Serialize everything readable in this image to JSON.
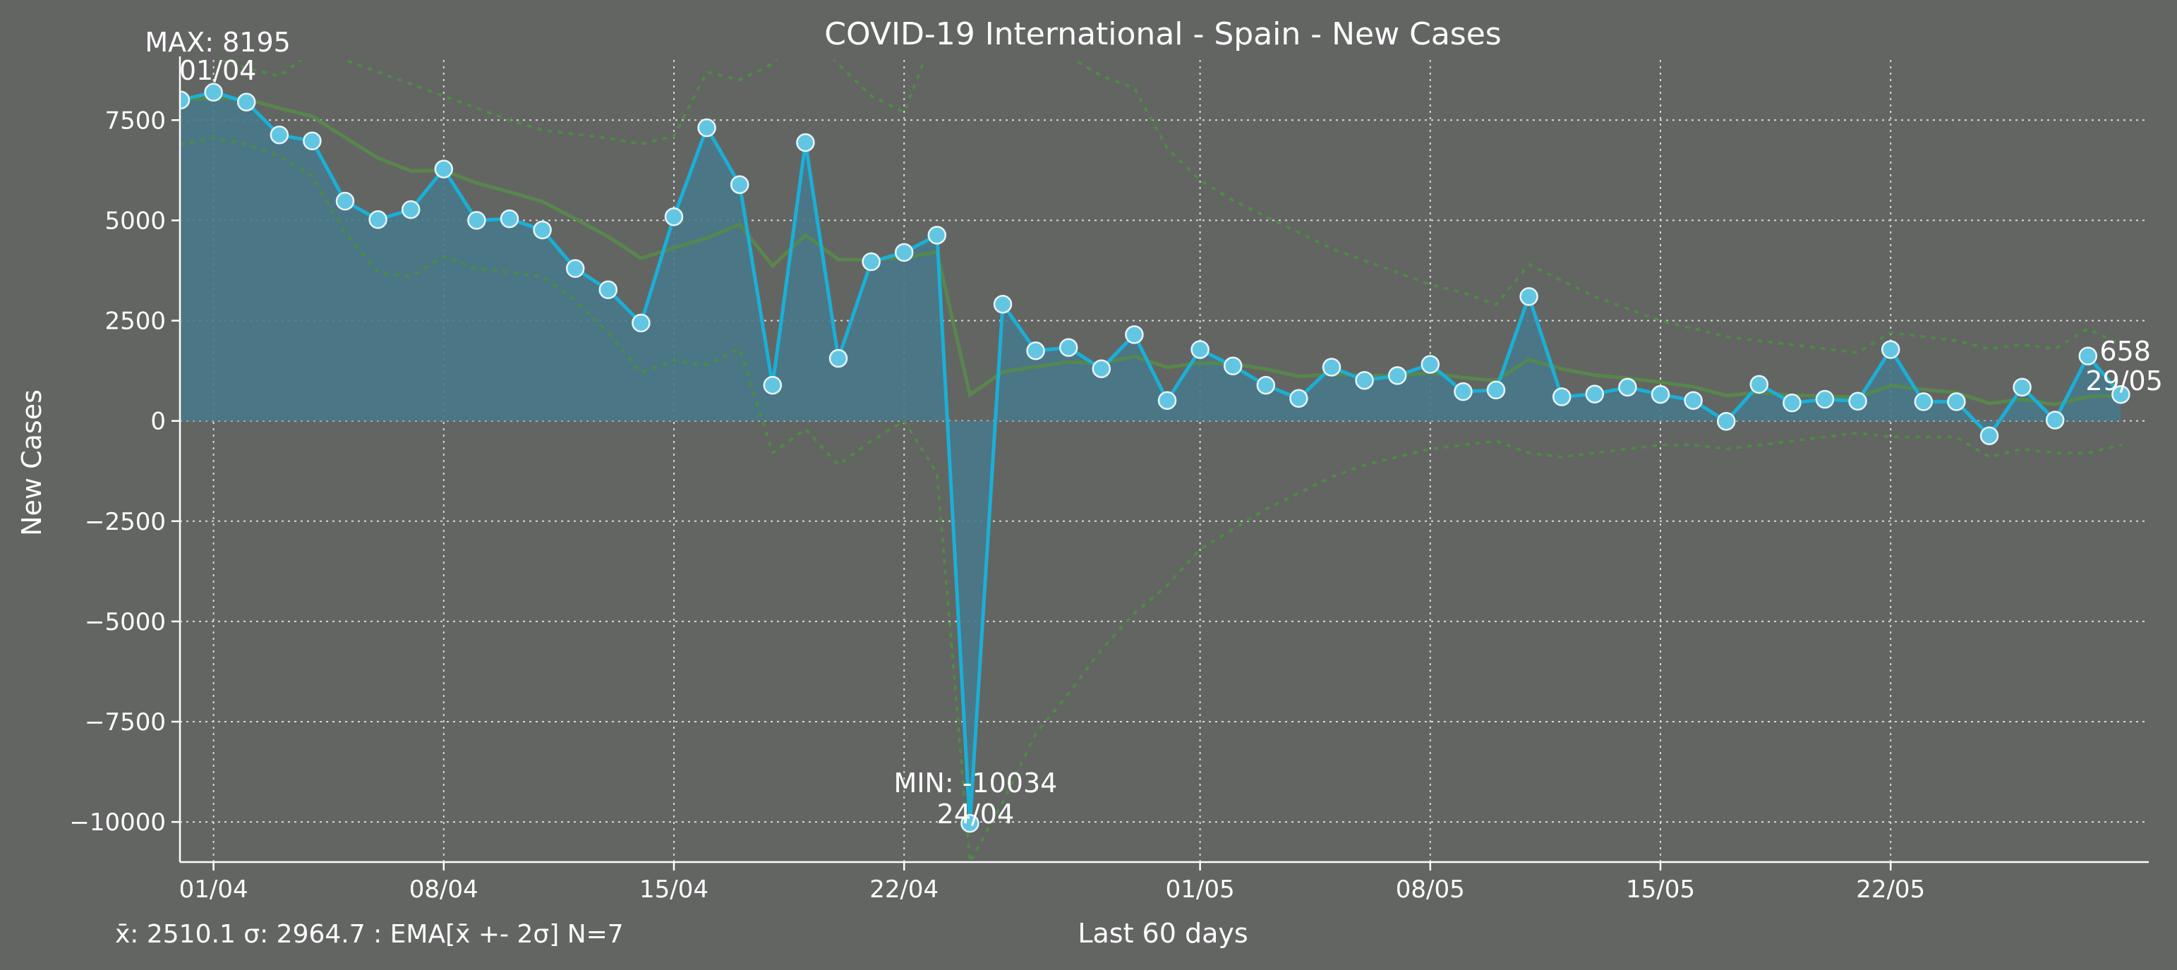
{
  "chart_data": {
    "type": "line",
    "title": "COVID-19 International - Spain - New Cases",
    "xlabel": "Last 60 days",
    "ylabel": "New Cases",
    "ylim": [
      -11000,
      9000
    ],
    "yticks": [
      -10000,
      -7500,
      -5000,
      -2500,
      0,
      2500,
      5000,
      7500
    ],
    "ytick_labels": [
      "−10000",
      "−7500",
      "−5000",
      "−2500",
      "0",
      "2500",
      "5000",
      "7500"
    ],
    "x_dates": [
      "31/03",
      "01/04",
      "02/04",
      "03/04",
      "04/04",
      "05/04",
      "06/04",
      "07/04",
      "08/04",
      "09/04",
      "10/04",
      "11/04",
      "12/04",
      "13/04",
      "14/04",
      "15/04",
      "16/04",
      "17/04",
      "18/04",
      "19/04",
      "20/04",
      "21/04",
      "22/04",
      "23/04",
      "24/04",
      "25/04",
      "26/04",
      "27/04",
      "28/04",
      "29/04",
      "30/04",
      "01/05",
      "02/05",
      "03/05",
      "04/05",
      "05/05",
      "06/05",
      "07/05",
      "08/05",
      "09/05",
      "10/05",
      "11/05",
      "12/05",
      "13/05",
      "14/05",
      "15/05",
      "16/05",
      "17/05",
      "18/05",
      "19/05",
      "20/05",
      "21/05",
      "22/05",
      "23/05",
      "24/05",
      "25/05",
      "26/05",
      "27/05",
      "28/05",
      "29/05"
    ],
    "xtick_labels": [
      "01/04",
      "08/04",
      "15/04",
      "22/04",
      "01/05",
      "08/05",
      "15/05",
      "22/05"
    ],
    "grid": true,
    "series": [
      {
        "values": [
          8000,
          8195,
          7950,
          7130,
          6980,
          5480,
          5020,
          5270,
          6280,
          5000,
          5040,
          4760,
          3800,
          3270,
          2440,
          5090,
          7310,
          5890,
          890,
          6940,
          1560,
          3970,
          4200,
          4630,
          -10034,
          2910,
          1750,
          1830,
          1300,
          2150,
          510,
          1780,
          1370,
          890,
          560,
          1340,
          1010,
          1130,
          1410,
          730,
          770,
          3100,
          600,
          670,
          840,
          660,
          510,
          -10,
          910,
          450,
          540,
          490,
          1780,
          480,
          480,
          -370,
          840,
          20,
          1620,
          658
        ],
        "style": "line-markers"
      },
      {
        "values": [
          8000,
          8049,
          8024,
          7800,
          7595,
          7066,
          6555,
          6233,
          6245,
          5932,
          5709,
          5472,
          5040,
          4594,
          4055,
          4313,
          4562,
          4905,
          3867,
          4634,
          4028,
          4015,
          4062,
          4213,
          651,
          1219,
          1352,
          1472,
          1429,
          1609,
          1334,
          1445,
          1426,
          1292,
          1109,
          1167,
          1128,
          1129,
          1200,
          1083,
          1005,
          1529,
          1297,
          1140,
          1065,
          964,
          850,
          635,
          705,
          641,
          616,
          585,
          883,
          782,
          706,
          437,
          538,
          408,
          611,
          623
        ],
        "style": "ema"
      },
      {
        "values": [
          8000,
          8049,
          8024,
          7800,
          7595,
          7066,
          6555,
          6233,
          6245,
          5932,
          5709,
          5472,
          5040,
          4594,
          4055,
          4313,
          4562,
          4905,
          3867,
          4634,
          4028,
          4015,
          4062,
          4213,
          651,
          1219,
          1352,
          1472,
          1429,
          1609,
          1334,
          1445,
          1426,
          1292,
          1109,
          1167,
          1128,
          1129,
          1200,
          1083,
          1005,
          1529,
          1297,
          1140,
          1065,
          964,
          850,
          635,
          705,
          641,
          616,
          585,
          883,
          782,
          706,
          437,
          538,
          408,
          611,
          623
        ],
        "band": [
          9100,
          9050,
          8800,
          8600,
          9200,
          9000,
          8700,
          8400,
          8100,
          7800,
          7500,
          7250,
          7150,
          7050,
          6900,
          7100,
          8700,
          8500,
          8900,
          9800,
          8900,
          8100,
          7700,
          9800,
          9800,
          9500,
          9300,
          9100,
          8600,
          8300,
          6800,
          6000,
          5500,
          5100,
          4700,
          4300,
          4000,
          3700,
          3400,
          3200,
          2900,
          3900,
          3500,
          3100,
          2800,
          2500,
          2300,
          2100,
          2000,
          1900,
          1800,
          1700,
          2200,
          2100,
          2000,
          1800,
          1900,
          1800,
          2300,
          1900
        ],
        "lower": [
          6900,
          7050,
          6900,
          6600,
          6100,
          4700,
          3700,
          3600,
          4100,
          3800,
          3700,
          3600,
          3000,
          2200,
          1200,
          1500,
          1400,
          1800,
          -800,
          -200,
          -1100,
          -500,
          0,
          -1300,
          -11000,
          -9500,
          -7800,
          -6800,
          -5700,
          -4800,
          -4100,
          -3200,
          -2700,
          -2200,
          -1800,
          -1400,
          -1100,
          -900,
          -700,
          -600,
          -500,
          -800,
          -900,
          -800,
          -700,
          -600,
          -600,
          -700,
          -600,
          -500,
          -400,
          -300,
          -400,
          -400,
          -400,
          -900,
          -700,
          -800,
          -800,
          -600
        ],
        "style": "bands"
      }
    ],
    "annotations": {
      "max": {
        "line1": "MAX: 8195",
        "line2": "01/04",
        "index": 1
      },
      "min": {
        "line1": "MIN: -10034",
        "line2": "24/04",
        "index": 24
      },
      "last": {
        "line1": "658",
        "line2": "29/05",
        "index": 59
      }
    },
    "stats_text": "x̄: 2510.1 σ: 2964.7 : EMA[x̄ +- 2σ] N=7",
    "colors": {
      "background": "#636563",
      "line": "#1bafd6",
      "marker_fill": "#62c6e2",
      "area": "#48788a",
      "ema": "#568a4a",
      "band": "#4e8a45",
      "stats": "#54e800"
    }
  }
}
